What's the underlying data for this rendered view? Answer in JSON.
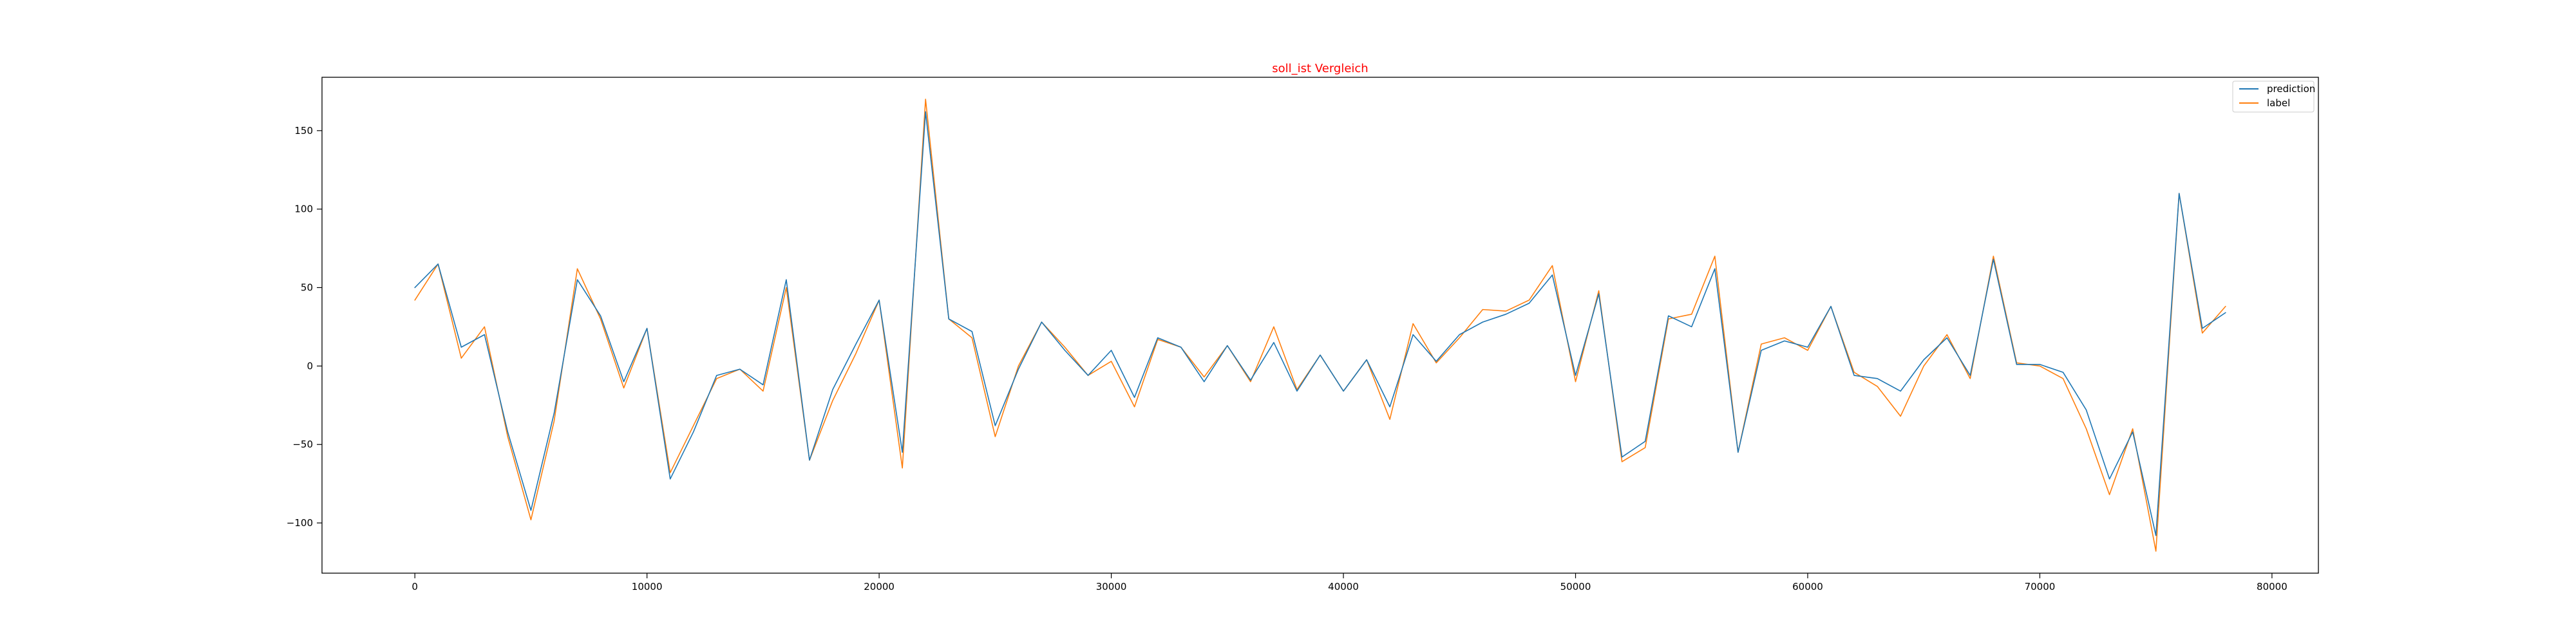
{
  "chart_data": {
    "type": "line",
    "title": "soll_ist Vergleich",
    "title_color": "#ff0000",
    "xlabel": "",
    "ylabel": "",
    "xlim": [
      -4000,
      82000
    ],
    "ylim": [
      -132,
      184
    ],
    "xticks": [
      0,
      10000,
      20000,
      30000,
      40000,
      50000,
      60000,
      70000,
      80000
    ],
    "yticks": [
      -100,
      -50,
      0,
      50,
      100,
      150
    ],
    "grid": false,
    "legend_position": "top-right",
    "x": [
      0,
      1000,
      2000,
      3000,
      4000,
      5000,
      6000,
      7000,
      8000,
      9000,
      10000,
      11000,
      12000,
      13000,
      14000,
      15000,
      16000,
      17000,
      18000,
      19000,
      20000,
      21000,
      22000,
      23000,
      24000,
      25000,
      26000,
      27000,
      28000,
      29000,
      30000,
      31000,
      32000,
      33000,
      34000,
      35000,
      36000,
      37000,
      38000,
      39000,
      40000,
      41000,
      42000,
      43000,
      44000,
      45000,
      46000,
      47000,
      48000,
      49000,
      50000,
      51000,
      52000,
      53000,
      54000,
      55000,
      56000,
      57000,
      58000,
      59000,
      60000,
      61000,
      62000,
      63000,
      64000,
      65000,
      66000,
      67000,
      68000,
      69000,
      70000,
      71000,
      72000,
      73000,
      74000,
      75000,
      76000,
      77000,
      78000
    ],
    "series": [
      {
        "name": "prediction",
        "color": "#1f77b4",
        "values": [
          50,
          65,
          12,
          20,
          -42,
          -92,
          -30,
          55,
          32,
          -10,
          24,
          -72,
          -42,
          -6,
          -2,
          -12,
          55,
          -60,
          -15,
          14,
          42,
          -55,
          162,
          30,
          22,
          -38,
          -2,
          28,
          10,
          -6,
          10,
          -20,
          18,
          12,
          -10,
          13,
          -9,
          15,
          -16,
          7,
          -16,
          4,
          -26,
          20,
          3,
          20,
          28,
          33,
          40,
          58,
          -6,
          46,
          -58,
          -48,
          32,
          25,
          62,
          -55,
          10,
          16,
          12,
          38,
          -6,
          -8,
          -16,
          4,
          18,
          -6,
          68,
          1,
          1,
          -4,
          -28,
          -72,
          -42,
          -108,
          110,
          24,
          34
        ],
        "z": 2
      },
      {
        "name": "label",
        "color": "#ff7f0e",
        "values": [
          42,
          65,
          5,
          25,
          -45,
          -98,
          -35,
          62,
          30,
          -14,
          24,
          -68,
          -38,
          -8,
          -2,
          -16,
          50,
          -60,
          -22,
          8,
          42,
          -65,
          170,
          30,
          18,
          -45,
          0,
          28,
          12,
          -6,
          3,
          -26,
          17,
          12,
          -7,
          13,
          -10,
          25,
          -15,
          7,
          -16,
          4,
          -34,
          27,
          2,
          18,
          36,
          35,
          42,
          64,
          -10,
          48,
          -61,
          -52,
          30,
          33,
          70,
          -55,
          14,
          18,
          10,
          38,
          -4,
          -13,
          -32,
          0,
          20,
          -8,
          70,
          2,
          0,
          -8,
          -40,
          -82,
          -40,
          -118,
          110,
          21,
          38
        ],
        "z": 1
      }
    ]
  }
}
